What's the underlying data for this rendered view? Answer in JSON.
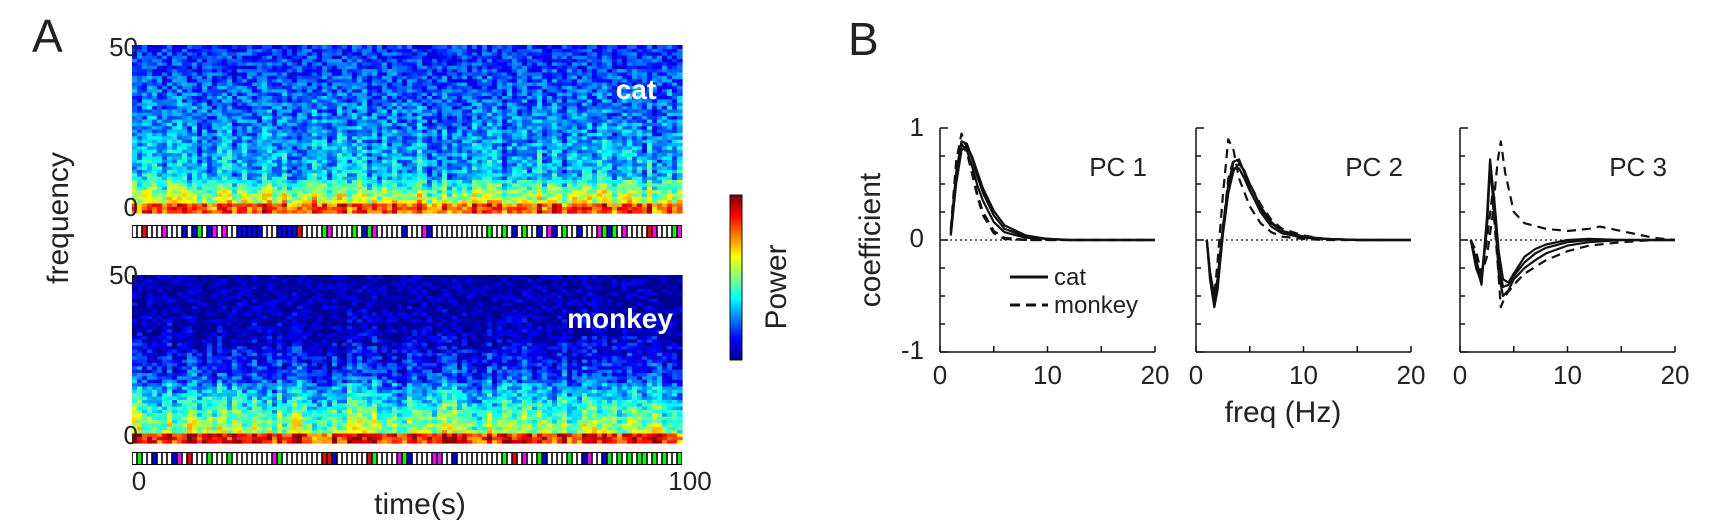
{
  "panels": {
    "a": "A",
    "b": "B"
  },
  "colors": {
    "jet": [
      "#00008f",
      "#0000ff",
      "#0080ff",
      "#00ffff",
      "#80ff80",
      "#ffff00",
      "#ff8000",
      "#ff0000",
      "#800000"
    ],
    "states": [
      "#000000",
      "#0000ff",
      "#00ff00",
      "#ff00ff",
      "#ff0000"
    ],
    "line": "#111111"
  },
  "chart_data": [
    {
      "type": "heatmap",
      "species_label": "cat",
      "ylabel": "frequency",
      "y_ticks": [
        "50",
        "0"
      ],
      "ylim": [
        0,
        50
      ],
      "x_range": [
        0,
        100
      ],
      "colormap": "jet",
      "state_bar": "colored segments below spectrogram"
    },
    {
      "type": "heatmap",
      "species_label": "monkey",
      "y_ticks": [
        "50",
        "0"
      ],
      "ylim": [
        0,
        50
      ],
      "xlabel": "time(s)",
      "x_ticks": [
        "0",
        "100"
      ],
      "x_range": [
        0,
        100
      ],
      "colormap": "jet",
      "state_bar": "colored segments below spectrogram"
    },
    {
      "type": "colorbar",
      "label": "Power"
    },
    {
      "type": "line",
      "panel": "B",
      "ylabel": "coefficient",
      "xlabel": "freq (Hz)",
      "y_ticks": [
        "1",
        "0",
        "-1"
      ],
      "x_ticks": [
        "0",
        "10",
        "20"
      ],
      "xlim": [
        0,
        20
      ],
      "ylim": [
        -1,
        1
      ],
      "legend": [
        {
          "name": "cat",
          "style": "solid"
        },
        {
          "name": "monkey",
          "style": "dashed"
        }
      ],
      "subplots": [
        {
          "title": "PC 1",
          "cat": [
            {
              "x": [
                1,
                1.5,
                2,
                2.5,
                3,
                3.5,
                4,
                5,
                6,
                8,
                10,
                12,
                15,
                20
              ],
              "y": [
                0.05,
                0.55,
                0.85,
                0.8,
                0.65,
                0.48,
                0.35,
                0.16,
                0.07,
                0.02,
                0.01,
                0.0,
                0.0,
                0.0
              ]
            },
            {
              "x": [
                1,
                1.5,
                2,
                2.5,
                3,
                3.5,
                4,
                5,
                6,
                8,
                10,
                12,
                15,
                20
              ],
              "y": [
                0.08,
                0.6,
                0.88,
                0.86,
                0.72,
                0.56,
                0.42,
                0.22,
                0.1,
                0.03,
                0.01,
                0.0,
                0.0,
                0.0
              ]
            },
            {
              "x": [
                1,
                1.5,
                2,
                2.5,
                3,
                3.5,
                4,
                5,
                6,
                8,
                10,
                12,
                15,
                20
              ],
              "y": [
                0.04,
                0.5,
                0.8,
                0.84,
                0.74,
                0.6,
                0.46,
                0.26,
                0.13,
                0.04,
                0.01,
                0.0,
                0.0,
                0.0
              ]
            }
          ],
          "monkey": [
            {
              "x": [
                1,
                1.5,
                2,
                2.5,
                3,
                3.5,
                4,
                5,
                6,
                8,
                10,
                15,
                20
              ],
              "y": [
                0.1,
                0.7,
                0.95,
                0.82,
                0.6,
                0.4,
                0.25,
                0.08,
                0.02,
                0.0,
                0.0,
                0.0,
                0.0
              ]
            },
            {
              "x": [
                1,
                1.5,
                2,
                2.5,
                3,
                3.5,
                4,
                5,
                6,
                8,
                10,
                15,
                20
              ],
              "y": [
                0.06,
                0.58,
                0.86,
                0.78,
                0.58,
                0.38,
                0.22,
                0.06,
                0.01,
                0.0,
                0.0,
                0.0,
                0.0
              ]
            }
          ]
        },
        {
          "title": "PC 2",
          "cat": [
            {
              "x": [
                1,
                1.3,
                1.7,
                2,
                2.5,
                3,
                3.5,
                4,
                4.5,
                5,
                6,
                7,
                8,
                10,
                12,
                15,
                20
              ],
              "y": [
                0.0,
                -0.3,
                -0.55,
                -0.4,
                0.1,
                0.5,
                0.7,
                0.72,
                0.6,
                0.45,
                0.25,
                0.12,
                0.06,
                0.02,
                0.01,
                0.0,
                0.0
              ]
            },
            {
              "x": [
                1,
                1.3,
                1.7,
                2,
                2.5,
                3,
                3.5,
                4,
                4.5,
                5,
                6,
                7,
                8,
                10,
                12,
                15,
                20
              ],
              "y": [
                0.0,
                -0.35,
                -0.6,
                -0.45,
                0.05,
                0.42,
                0.62,
                0.68,
                0.62,
                0.5,
                0.3,
                0.16,
                0.08,
                0.03,
                0.01,
                0.0,
                0.0
              ]
            },
            {
              "x": [
                1,
                1.3,
                1.7,
                2,
                2.5,
                3,
                3.5,
                4,
                4.5,
                5,
                6,
                7,
                8,
                10,
                12,
                15,
                20
              ],
              "y": [
                0.0,
                -0.28,
                -0.5,
                -0.35,
                0.12,
                0.48,
                0.64,
                0.64,
                0.55,
                0.44,
                0.27,
                0.15,
                0.08,
                0.03,
                0.01,
                0.0,
                0.0
              ]
            }
          ],
          "monkey": [
            {
              "x": [
                1,
                1.3,
                1.7,
                2,
                2.5,
                3,
                3.5,
                4,
                5,
                6,
                7,
                8,
                10,
                12,
                15,
                20
              ],
              "y": [
                0.0,
                -0.3,
                -0.5,
                -0.2,
                0.4,
                0.9,
                0.8,
                0.55,
                0.3,
                0.15,
                0.07,
                0.03,
                0.01,
                0.0,
                0.0,
                0.0
              ]
            },
            {
              "x": [
                1,
                1.3,
                1.7,
                2,
                2.5,
                3,
                3.5,
                4,
                5,
                6,
                7,
                8,
                10,
                12,
                15,
                20
              ],
              "y": [
                0.0,
                -0.32,
                -0.55,
                -0.35,
                0.1,
                0.55,
                0.72,
                0.7,
                0.5,
                0.32,
                0.18,
                0.1,
                0.04,
                0.01,
                0.0,
                0.0
              ]
            }
          ]
        },
        {
          "title": "PC 3",
          "cat": [
            {
              "x": [
                1,
                1.5,
                2,
                2.5,
                2.8,
                3.2,
                3.6,
                4,
                4.5,
                5,
                6,
                7,
                8,
                10,
                12,
                15,
                20
              ],
              "y": [
                0.0,
                -0.2,
                -0.4,
                0.2,
                0.72,
                0.3,
                -0.3,
                -0.5,
                -0.45,
                -0.35,
                -0.25,
                -0.18,
                -0.12,
                -0.05,
                -0.02,
                0.0,
                0.0
              ]
            },
            {
              "x": [
                1,
                1.5,
                2,
                2.5,
                2.8,
                3.2,
                3.6,
                4,
                4.5,
                5,
                6,
                7,
                8,
                10,
                12,
                15,
                20
              ],
              "y": [
                0.0,
                -0.25,
                -0.38,
                0.1,
                0.65,
                0.25,
                -0.2,
                -0.42,
                -0.4,
                -0.32,
                -0.2,
                -0.12,
                -0.07,
                -0.02,
                0.0,
                0.0,
                0.0
              ]
            },
            {
              "x": [
                1,
                1.5,
                2,
                2.5,
                2.8,
                3.2,
                3.6,
                4,
                4.5,
                5,
                6,
                7,
                8,
                10,
                12,
                15,
                20
              ],
              "y": [
                0.0,
                -0.18,
                -0.35,
                0.15,
                0.7,
                0.35,
                -0.1,
                -0.35,
                -0.38,
                -0.3,
                -0.15,
                -0.08,
                -0.04,
                0.0,
                0.01,
                0.0,
                0.0
              ]
            }
          ],
          "monkey": [
            {
              "x": [
                1,
                1.5,
                2,
                2.5,
                3,
                3.5,
                3.8,
                4.2,
                5,
                6,
                8,
                10,
                12,
                13,
                15,
                18,
                20
              ],
              "y": [
                0.0,
                -0.1,
                -0.3,
                -0.15,
                0.2,
                0.7,
                0.88,
                0.6,
                0.25,
                0.15,
                0.1,
                0.08,
                0.1,
                0.12,
                0.08,
                0.02,
                0.0
              ]
            },
            {
              "x": [
                1,
                1.5,
                2,
                2.5,
                3,
                3.5,
                3.8,
                4.2,
                5,
                6,
                8,
                10,
                12,
                15,
                18,
                20
              ],
              "y": [
                0.0,
                -0.12,
                -0.3,
                0.0,
                0.4,
                -0.2,
                -0.6,
                -0.5,
                -0.4,
                -0.3,
                -0.18,
                -0.1,
                -0.05,
                -0.02,
                0.0,
                0.0
              ]
            }
          ]
        }
      ]
    }
  ]
}
